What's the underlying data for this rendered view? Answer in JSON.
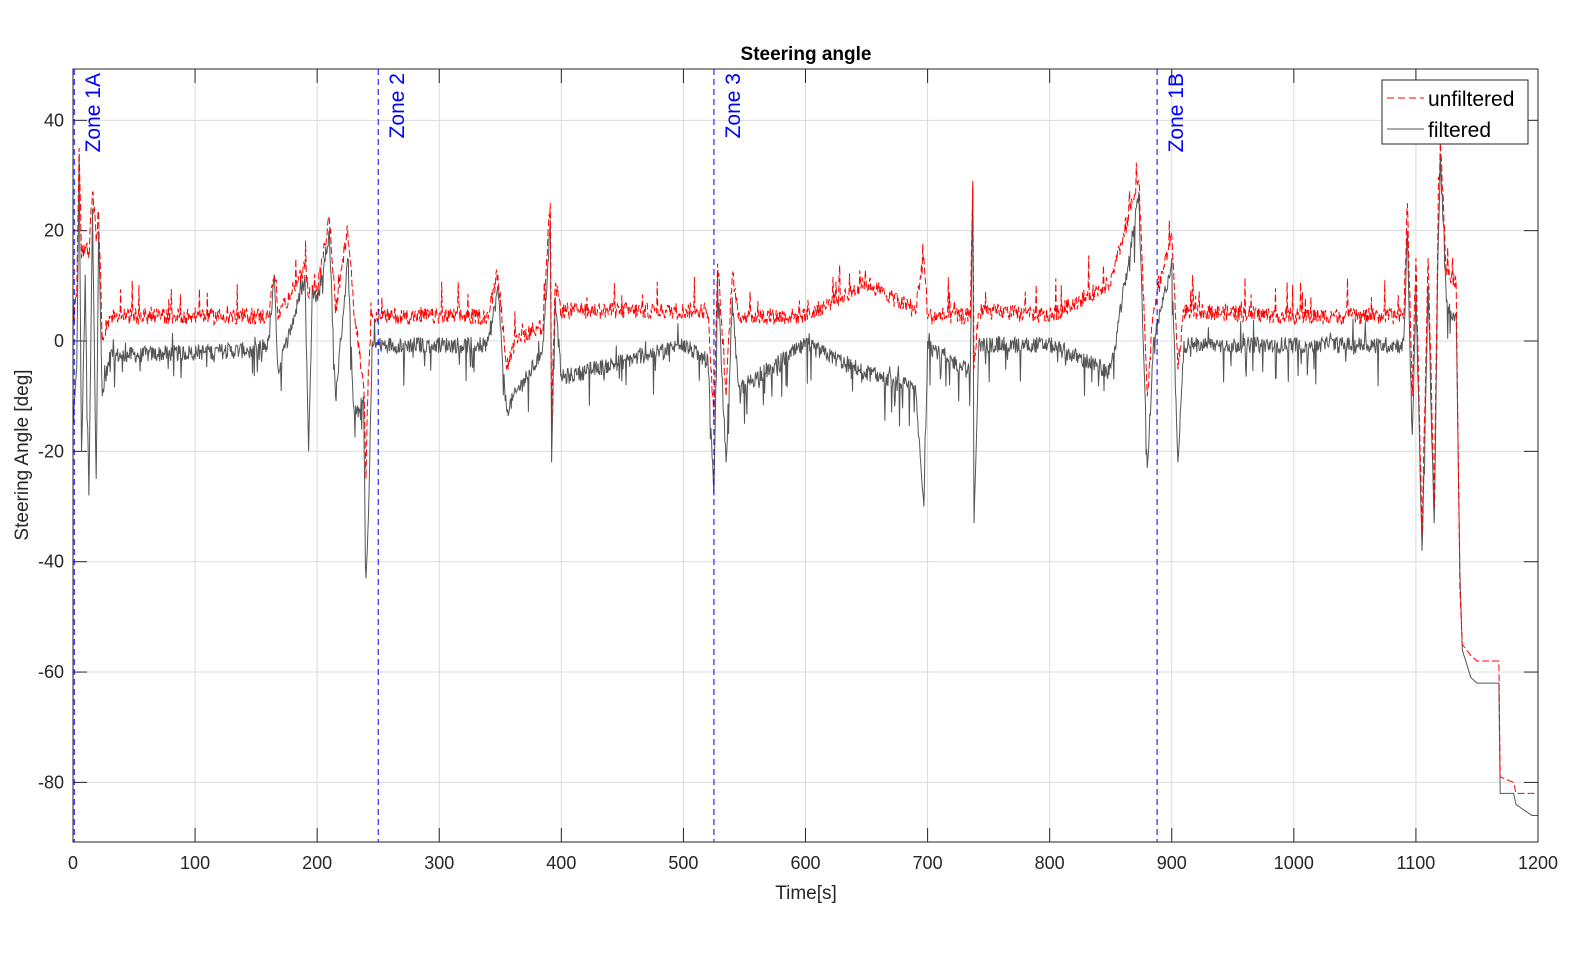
{
  "chart_data": {
    "type": "line",
    "title": "Steering angle",
    "xlabel": "Time[s]",
    "ylabel": "Steering Angle [deg]",
    "xlim": [
      0,
      1200
    ],
    "ylim": [
      -90.8,
      49.3
    ],
    "xticks": [
      0,
      100,
      200,
      300,
      400,
      500,
      600,
      700,
      800,
      900,
      1000,
      1100,
      1200
    ],
    "yticks": [
      -80,
      -60,
      -40,
      -20,
      0,
      20,
      40
    ],
    "grid": true,
    "legend": {
      "placement": "top-right",
      "entries": [
        "unfiltered",
        "filtered"
      ]
    },
    "zones": [
      {
        "label": "Zone 1A",
        "x": 1
      },
      {
        "label": "Zone 2",
        "x": 250
      },
      {
        "label": "Zone 3",
        "x": 525
      },
      {
        "label": "Zone 1B",
        "x": 888
      }
    ],
    "colors": {
      "unfiltered": "#ff0000",
      "filtered": "#555555",
      "zone": "#0000ff",
      "grid": "#dcdcdc"
    },
    "x": [
      0,
      3,
      5,
      7,
      10,
      13,
      16,
      19,
      21,
      24,
      30,
      140,
      160,
      165,
      168,
      190,
      193,
      196,
      200,
      210,
      215,
      225,
      230,
      238,
      240,
      242,
      245,
      250,
      340,
      348,
      355,
      365,
      380,
      385,
      391,
      392,
      395,
      400,
      500,
      520,
      525,
      528,
      535,
      540,
      545,
      600,
      650,
      690,
      697,
      700,
      735,
      737,
      738,
      742,
      800,
      850,
      873,
      880,
      885,
      900,
      905,
      910,
      1000,
      1090,
      1093,
      1097,
      1100,
      1105,
      1110,
      1115,
      1118,
      1120,
      1125,
      1133,
      1136,
      1138,
      1145,
      1150,
      1168,
      1169,
      1180,
      1182,
      1195,
      1200
    ],
    "series": [
      {
        "name": "unfiltered",
        "values": [
          2,
          8,
          35,
          15,
          17,
          15,
          27,
          18,
          23,
          0,
          4,
          4,
          4,
          12,
          4,
          13,
          8,
          10,
          8,
          22,
          5,
          20,
          5,
          -8,
          -25,
          -5,
          5,
          4,
          4,
          12,
          -5,
          0,
          2,
          2,
          25,
          -15,
          10,
          5,
          5,
          5,
          -15,
          14,
          -10,
          12,
          4,
          4,
          10,
          5,
          15,
          4,
          4,
          29,
          -5,
          5,
          4,
          10,
          29,
          -10,
          5,
          19,
          -5,
          5,
          4,
          4,
          25,
          -10,
          15,
          -35,
          15,
          -30,
          20,
          36,
          12,
          10,
          -45,
          -55,
          -57,
          -58,
          -58,
          -79,
          -80,
          -82,
          -82,
          -82
        ]
      },
      {
        "name": "filtered",
        "values": [
          -15,
          -5,
          33,
          -20,
          12,
          -28,
          24,
          -25,
          20,
          -10,
          -2,
          -1,
          0,
          12,
          -5,
          12,
          -20,
          10,
          8,
          20,
          -10,
          15,
          -12,
          -10,
          -43,
          -32,
          0,
          0,
          0,
          10,
          -12,
          -8,
          -3,
          0,
          22,
          -22,
          8,
          -6,
          0,
          -3,
          -28,
          12,
          -22,
          8,
          -8,
          0,
          -5,
          -8,
          -30,
          0,
          -5,
          28,
          -33,
          0,
          0,
          -5,
          27,
          -23,
          0,
          15,
          -22,
          0,
          0,
          0,
          20,
          -17,
          10,
          -38,
          10,
          -33,
          15,
          34,
          7,
          5,
          -42,
          -56,
          -61,
          -62,
          -62,
          -82,
          -82,
          -84,
          -86,
          -86
        ]
      }
    ]
  }
}
